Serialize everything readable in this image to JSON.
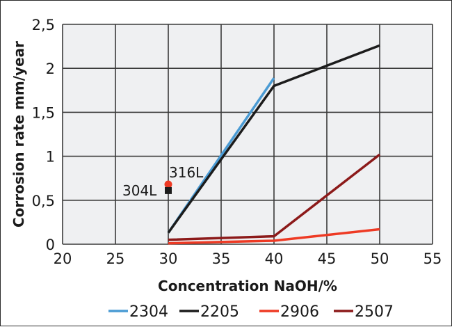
{
  "chart_data": {
    "type": "line",
    "title": "",
    "xlabel": "Concentration NaOH/%",
    "ylabel": "Corrosion rate mm/year",
    "xlim": [
      20,
      55
    ],
    "ylim": [
      0,
      2.5
    ],
    "x_ticks": [
      "20",
      "25",
      "30",
      "35",
      "40",
      "45",
      "50",
      "55"
    ],
    "y_ticks": [
      "0",
      "0,5",
      "1",
      "1,5",
      "2",
      "2,5"
    ],
    "grid": true,
    "legend_position": "bottom",
    "series": [
      {
        "name": "2304",
        "color": "#4a9bd4",
        "x": [
          30,
          40
        ],
        "values": [
          0.13,
          1.89
        ]
      },
      {
        "name": "2205",
        "color": "#1c1c1c",
        "x": [
          30,
          40,
          50
        ],
        "values": [
          0.13,
          1.8,
          2.26
        ]
      },
      {
        "name": "2906",
        "color": "#ee3a24",
        "x": [
          30,
          40,
          50
        ],
        "values": [
          0.01,
          0.04,
          0.17
        ]
      },
      {
        "name": "2507",
        "color": "#8c1a1a",
        "x": [
          30,
          40,
          50
        ],
        "values": [
          0.05,
          0.09,
          1.02
        ]
      }
    ],
    "points": [
      {
        "name": "316L",
        "x": 30,
        "y": 0.68,
        "color": "#ee3a24",
        "marker": "circle"
      },
      {
        "name": "304L",
        "x": 30,
        "y": 0.61,
        "color": "#1c1c1c",
        "marker": "square"
      }
    ]
  },
  "labels": {
    "ylabel": "Corrosion rate mm/year",
    "xlabel": "Concentration NaOH/%",
    "annot_316L": "316L",
    "annot_304L": "304L",
    "legend": [
      "2304",
      "2205",
      "2906",
      "2507"
    ]
  }
}
